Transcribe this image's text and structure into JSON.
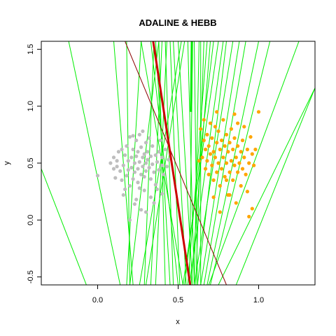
{
  "chart_data": {
    "type": "scatter",
    "title": "ADALINE & HEBB",
    "xlabel": "x",
    "ylabel": "y",
    "xlim": [
      -0.35,
      1.35
    ],
    "ylim": [
      -0.57,
      1.57
    ],
    "x_ticks": [
      0.0,
      0.5,
      1.0
    ],
    "x_tick_labels": [
      "0.0",
      "0.5",
      "1.0"
    ],
    "y_ticks": [
      -0.5,
      0.0,
      0.5,
      1.0,
      1.5
    ],
    "y_tick_labels": [
      "-0.5",
      "0.0",
      "0.5",
      "1.0",
      "1.5"
    ],
    "grid": false,
    "colors": {
      "class_a": "#bebebe",
      "class_b": "#ffa500",
      "green_lines": "#00ee00",
      "adaline_line": "#cc0000",
      "hebb_line": "#8b0000"
    },
    "series": [
      {
        "color": "#bebebe",
        "points": [
          [
            0.0,
            0.39
          ],
          [
            0.08,
            0.5
          ],
          [
            0.1,
            0.55
          ],
          [
            0.1,
            0.45
          ],
          [
            0.12,
            0.52
          ],
          [
            0.13,
            0.6
          ],
          [
            0.14,
            0.43
          ],
          [
            0.15,
            0.35
          ],
          [
            0.15,
            0.62
          ],
          [
            0.16,
            0.48
          ],
          [
            0.17,
            0.57
          ],
          [
            0.17,
            0.27
          ],
          [
            0.18,
            0.65
          ],
          [
            0.18,
            0.39
          ],
          [
            0.19,
            0.52
          ],
          [
            0.19,
            0.44
          ],
          [
            0.2,
            0.73
          ],
          [
            0.2,
            0.3
          ],
          [
            0.21,
            0.55
          ],
          [
            0.21,
            0.46
          ],
          [
            0.22,
            0.62
          ],
          [
            0.22,
            0.74
          ],
          [
            0.22,
            0.36
          ],
          [
            0.23,
            0.5
          ],
          [
            0.23,
            0.42
          ],
          [
            0.24,
            0.56
          ],
          [
            0.24,
            0.7
          ],
          [
            0.25,
            0.45
          ],
          [
            0.25,
            0.33
          ],
          [
            0.25,
            0.6
          ],
          [
            0.26,
            0.51
          ],
          [
            0.26,
            0.75
          ],
          [
            0.27,
            0.4
          ],
          [
            0.27,
            0.64
          ],
          [
            0.28,
            0.55
          ],
          [
            0.28,
            0.47
          ],
          [
            0.28,
            0.78
          ],
          [
            0.29,
            0.38
          ],
          [
            0.29,
            0.58
          ],
          [
            0.3,
            0.5
          ],
          [
            0.3,
            0.68
          ],
          [
            0.3,
            0.43
          ],
          [
            0.31,
            0.6
          ],
          [
            0.31,
            0.53
          ],
          [
            0.32,
            0.46
          ],
          [
            0.32,
            0.72
          ],
          [
            0.33,
            0.36
          ],
          [
            0.33,
            0.56
          ],
          [
            0.34,
            0.49
          ],
          [
            0.34,
            0.65
          ],
          [
            0.35,
            0.42
          ],
          [
            0.36,
            0.57
          ],
          [
            0.36,
            0.31
          ],
          [
            0.37,
            0.51
          ],
          [
            0.38,
            0.6
          ],
          [
            0.38,
            0.44
          ],
          [
            0.39,
            0.7
          ],
          [
            0.4,
            0.48
          ],
          [
            0.4,
            0.55
          ],
          [
            0.41,
            0.4
          ],
          [
            0.42,
            0.62
          ],
          [
            0.43,
            0.47
          ],
          [
            0.44,
            0.53
          ],
          [
            0.45,
            0.58
          ],
          [
            0.2,
            0.0
          ],
          [
            0.3,
            0.07
          ],
          [
            0.27,
            0.09
          ],
          [
            0.23,
            0.14
          ],
          [
            0.12,
            0.47
          ],
          [
            0.16,
            0.22
          ],
          [
            0.33,
            0.2
          ],
          [
            0.35,
            0.15
          ],
          [
            0.4,
            0.23
          ],
          [
            0.26,
            0.28
          ],
          [
            0.11,
            0.37
          ],
          [
            0.29,
            0.26
          ],
          [
            0.24,
            0.18
          ],
          [
            0.37,
            0.27
          ]
        ]
      },
      {
        "color": "#ffa500",
        "points": [
          [
            0.64,
            0.8
          ],
          [
            0.65,
            0.55
          ],
          [
            0.66,
            0.7
          ],
          [
            0.67,
            0.45
          ],
          [
            0.67,
            0.62
          ],
          [
            0.68,
            0.52
          ],
          [
            0.68,
            0.75
          ],
          [
            0.69,
            0.4
          ],
          [
            0.69,
            0.65
          ],
          [
            0.7,
            0.58
          ],
          [
            0.7,
            0.85
          ],
          [
            0.71,
            0.48
          ],
          [
            0.71,
            0.72
          ],
          [
            0.72,
            0.35
          ],
          [
            0.72,
            0.6
          ],
          [
            0.73,
            0.55
          ],
          [
            0.73,
            0.82
          ],
          [
            0.74,
            0.42
          ],
          [
            0.74,
            0.68
          ],
          [
            0.75,
            0.5
          ],
          [
            0.75,
            0.78
          ],
          [
            0.76,
            0.3
          ],
          [
            0.76,
            0.62
          ],
          [
            0.77,
            0.45
          ],
          [
            0.77,
            0.7
          ],
          [
            0.78,
            0.55
          ],
          [
            0.78,
            0.88
          ],
          [
            0.79,
            0.38
          ],
          [
            0.79,
            0.65
          ],
          [
            0.8,
            0.5
          ],
          [
            0.8,
            0.75
          ],
          [
            0.81,
            0.22
          ],
          [
            0.81,
            0.6
          ],
          [
            0.82,
            0.42
          ],
          [
            0.82,
            0.68
          ],
          [
            0.83,
            0.52
          ],
          [
            0.83,
            0.8
          ],
          [
            0.84,
            0.35
          ],
          [
            0.84,
            0.62
          ],
          [
            0.85,
            0.48
          ],
          [
            0.85,
            0.72
          ],
          [
            0.86,
            0.55
          ],
          [
            0.86,
            0.15
          ],
          [
            0.87,
            0.42
          ],
          [
            0.87,
            0.65
          ],
          [
            0.88,
            0.5
          ],
          [
            0.89,
            0.6
          ],
          [
            0.89,
            0.3
          ],
          [
            0.9,
            0.45
          ],
          [
            0.9,
            0.7
          ],
          [
            0.91,
            0.55
          ],
          [
            0.92,
            0.4
          ],
          [
            0.93,
            0.62
          ],
          [
            0.94,
            0.5
          ],
          [
            0.95,
            0.73
          ],
          [
            0.96,
            0.58
          ],
          [
            0.97,
            0.48
          ],
          [
            0.98,
            0.62
          ],
          [
            1.0,
            0.95
          ],
          [
            0.96,
            0.1
          ],
          [
            0.94,
            0.03
          ],
          [
            0.76,
            0.07
          ],
          [
            0.72,
            0.2
          ],
          [
            0.82,
            0.22
          ],
          [
            0.91,
            0.82
          ],
          [
            0.85,
            0.93
          ],
          [
            0.63,
            0.52
          ],
          [
            0.66,
            0.88
          ],
          [
            0.74,
            0.95
          ],
          [
            0.8,
            0.35
          ],
          [
            0.93,
            0.25
          ],
          [
            0.87,
            0.85
          ]
        ]
      }
    ],
    "green_lines": [
      [
        [
          -0.35,
          0.45
        ],
        [
          -0.07,
          -0.57
        ]
      ],
      [
        [
          0.18,
          1.57
        ],
        [
          0.2,
          -0.57
        ]
      ],
      [
        [
          0.27,
          1.57
        ],
        [
          0.18,
          -0.57
        ]
      ],
      [
        [
          -0.18,
          1.57
        ],
        [
          0.14,
          -0.57
        ]
      ],
      [
        [
          0.1,
          1.57
        ],
        [
          0.22,
          -0.57
        ]
      ],
      [
        [
          0.38,
          1.57
        ],
        [
          0.2,
          -0.57
        ]
      ],
      [
        [
          0.35,
          1.57
        ],
        [
          0.29,
          -0.57
        ]
      ],
      [
        [
          0.4,
          1.57
        ],
        [
          0.33,
          -0.57
        ]
      ],
      [
        [
          0.43,
          1.57
        ],
        [
          0.36,
          -0.57
        ]
      ],
      [
        [
          0.38,
          1.57
        ],
        [
          0.42,
          -0.57
        ]
      ],
      [
        [
          0.42,
          1.57
        ],
        [
          0.47,
          -0.57
        ]
      ],
      [
        [
          0.45,
          1.57
        ],
        [
          0.51,
          -0.57
        ]
      ],
      [
        [
          0.47,
          1.57
        ],
        [
          0.55,
          -0.57
        ]
      ],
      [
        [
          0.5,
          1.57
        ],
        [
          0.59,
          -0.57
        ]
      ],
      [
        [
          0.56,
          1.57
        ],
        [
          0.6,
          -0.57
        ]
      ],
      [
        [
          0.59,
          1.57
        ],
        [
          0.57,
          -0.57
        ]
      ],
      [
        [
          0.6,
          1.57
        ],
        [
          0.62,
          -0.57
        ]
      ],
      [
        [
          0.63,
          1.57
        ],
        [
          0.6,
          -0.57
        ]
      ],
      [
        [
          0.64,
          1.57
        ],
        [
          0.64,
          -0.57
        ]
      ],
      [
        [
          0.66,
          1.57
        ],
        [
          0.61,
          -0.57
        ]
      ],
      [
        [
          0.68,
          1.57
        ],
        [
          0.56,
          -0.57
        ]
      ],
      [
        [
          0.7,
          1.57
        ],
        [
          0.58,
          -0.57
        ]
      ],
      [
        [
          0.72,
          1.57
        ],
        [
          0.54,
          -0.57
        ]
      ],
      [
        [
          0.75,
          1.57
        ],
        [
          0.53,
          -0.57
        ]
      ],
      [
        [
          0.78,
          1.57
        ],
        [
          0.57,
          -0.57
        ]
      ],
      [
        [
          0.8,
          1.57
        ],
        [
          0.62,
          -0.57
        ]
      ],
      [
        [
          0.84,
          1.57
        ],
        [
          0.6,
          -0.57
        ]
      ],
      [
        [
          0.88,
          1.57
        ],
        [
          0.64,
          -0.57
        ]
      ],
      [
        [
          0.92,
          1.57
        ],
        [
          0.66,
          -0.57
        ]
      ],
      [
        [
          1.0,
          1.57
        ],
        [
          0.68,
          -0.57
        ]
      ],
      [
        [
          1.07,
          1.57
        ],
        [
          0.7,
          -0.57
        ]
      ],
      [
        [
          1.25,
          1.57
        ],
        [
          0.69,
          -0.57
        ]
      ],
      [
        [
          1.35,
          1.16
        ],
        [
          0.75,
          -0.57
        ]
      ],
      [
        [
          1.35,
          1.16
        ],
        [
          0.86,
          -0.57
        ]
      ],
      [
        [
          0.27,
          1.57
        ],
        [
          0.53,
          -0.57
        ]
      ],
      [
        [
          0.33,
          1.57
        ],
        [
          0.5,
          -0.57
        ]
      ],
      [
        [
          0.36,
          1.57
        ],
        [
          0.45,
          -0.57
        ]
      ],
      [
        [
          0.52,
          1.57
        ],
        [
          0.26,
          -0.57
        ]
      ],
      [
        [
          0.54,
          1.57
        ],
        [
          0.3,
          -0.57
        ]
      ]
    ],
    "thick_green_line": [
      [
        0.585,
        1.57
      ],
      [
        0.58,
        0.95
      ]
    ],
    "adaline_line": [
      [
        0.345,
        1.57
      ],
      [
        0.575,
        -0.57
      ]
    ],
    "hebb_line": [
      [
        0.17,
        1.57
      ],
      [
        0.8,
        -0.57
      ]
    ]
  }
}
